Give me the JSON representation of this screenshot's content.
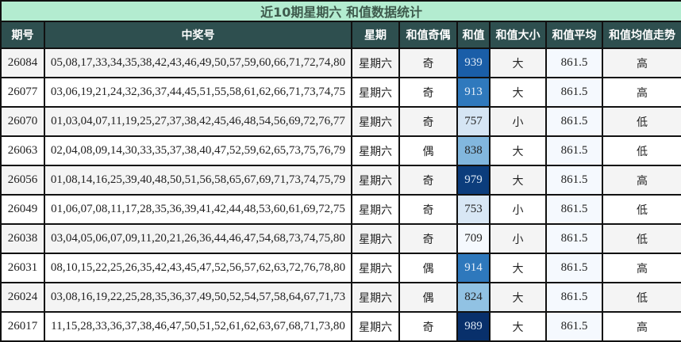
{
  "title": "近10期星期六 和值数据统计",
  "headers": [
    "期号",
    "中奖号",
    "星期",
    "和值奇偶",
    "和值",
    "和值大小",
    "和值平均",
    "和值均值走势"
  ],
  "rows": [
    {
      "issue": "26084",
      "numbers": "05,08,17,33,34,35,38,42,43,46,49,50,57,59,60,66,71,72,74,80",
      "weekday": "星期六",
      "parity": "奇",
      "sum": "939",
      "size": "大",
      "avg": "861.5",
      "trend": "高",
      "sum_color": "#1a5ea8",
      "sum_text": "#dce8f5"
    },
    {
      "issue": "26077",
      "numbers": "03,06,19,21,24,32,36,37,44,45,51,55,58,61,62,66,71,73,74,75",
      "weekday": "星期六",
      "parity": "奇",
      "sum": "913",
      "size": "大",
      "avg": "861.5",
      "trend": "高",
      "sum_color": "#2f79bd",
      "sum_text": "#e6eef8"
    },
    {
      "issue": "26070",
      "numbers": "01,03,04,07,11,19,25,27,37,38,42,45,46,48,54,56,69,72,76,77",
      "weekday": "星期六",
      "parity": "奇",
      "sum": "757",
      "size": "小",
      "avg": "861.5",
      "trend": "低",
      "sum_color": "#d5e5f4",
      "sum_text": "#222"
    },
    {
      "issue": "26063",
      "numbers": "02,04,08,09,14,30,33,35,37,38,40,47,52,59,62,65,73,75,76,79",
      "weekday": "星期六",
      "parity": "偶",
      "sum": "838",
      "size": "大",
      "avg": "861.5",
      "trend": "低",
      "sum_color": "#82b7de",
      "sum_text": "#222"
    },
    {
      "issue": "26056",
      "numbers": "01,08,14,16,25,39,40,48,50,51,56,58,65,67,69,71,73,74,75,79",
      "weekday": "星期六",
      "parity": "奇",
      "sum": "979",
      "size": "大",
      "avg": "861.5",
      "trend": "高",
      "sum_color": "#0c3d7c",
      "sum_text": "#dce8f5"
    },
    {
      "issue": "26049",
      "numbers": "01,06,07,08,11,17,28,35,36,39,41,42,44,48,53,60,61,69,72,75",
      "weekday": "星期六",
      "parity": "奇",
      "sum": "753",
      "size": "小",
      "avg": "861.5",
      "trend": "低",
      "sum_color": "#d8e7f5",
      "sum_text": "#222"
    },
    {
      "issue": "26038",
      "numbers": "03,04,05,06,07,09,11,20,21,26,36,44,46,47,54,68,73,74,75,80",
      "weekday": "星期六",
      "parity": "奇",
      "sum": "709",
      "size": "小",
      "avg": "861.5",
      "trend": "低",
      "sum_color": "#f5f9fe",
      "sum_text": "#222"
    },
    {
      "issue": "26031",
      "numbers": "08,10,15,22,25,26,35,42,43,45,47,52,56,57,62,63,72,76,78,80",
      "weekday": "星期六",
      "parity": "偶",
      "sum": "914",
      "size": "大",
      "avg": "861.5",
      "trend": "高",
      "sum_color": "#2e78bc",
      "sum_text": "#e6eef8"
    },
    {
      "issue": "26024",
      "numbers": "03,08,16,19,22,25,28,35,36,37,49,50,52,54,57,58,64,67,71,73",
      "weekday": "星期六",
      "parity": "偶",
      "sum": "824",
      "size": "大",
      "avg": "861.5",
      "trend": "低",
      "sum_color": "#91c2e3",
      "sum_text": "#222"
    },
    {
      "issue": "26017",
      "numbers": "11,15,28,33,36,37,38,46,47,50,51,52,61,62,63,67,68,71,73,80",
      "weekday": "星期六",
      "parity": "奇",
      "sum": "989",
      "size": "大",
      "avg": "861.5",
      "trend": "高",
      "sum_color": "#08306b",
      "sum_text": "#dce8f5"
    }
  ]
}
